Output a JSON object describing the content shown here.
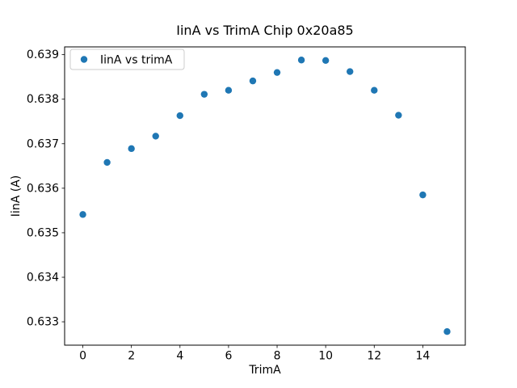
{
  "chart_data": {
    "type": "scatter",
    "title": "IinA vs TrimA Chip 0x20a85",
    "xlabel": "TrimA",
    "ylabel": "IinA (A)",
    "legend": [
      "IinA vs trimA"
    ],
    "legend_position": "upper left",
    "marker_color": "#1f77b4",
    "grid": false,
    "x": [
      0,
      1,
      2,
      3,
      4,
      5,
      6,
      7,
      8,
      9,
      10,
      11,
      12,
      13,
      14,
      15
    ],
    "y": [
      0.63541,
      0.63658,
      0.63689,
      0.63717,
      0.63763,
      0.63811,
      0.6382,
      0.63841,
      0.6386,
      0.63888,
      0.63887,
      0.63862,
      0.6382,
      0.63764,
      0.63585,
      0.63278
    ],
    "xlim": [
      -0.75,
      15.75
    ],
    "ylim": [
      0.632475,
      0.639175
    ],
    "xticks": [
      0,
      2,
      4,
      6,
      8,
      10,
      12,
      14
    ],
    "yticks": [
      0.633,
      0.634,
      0.635,
      0.636,
      0.637,
      0.638,
      0.639
    ],
    "ytick_decimals": 3
  }
}
